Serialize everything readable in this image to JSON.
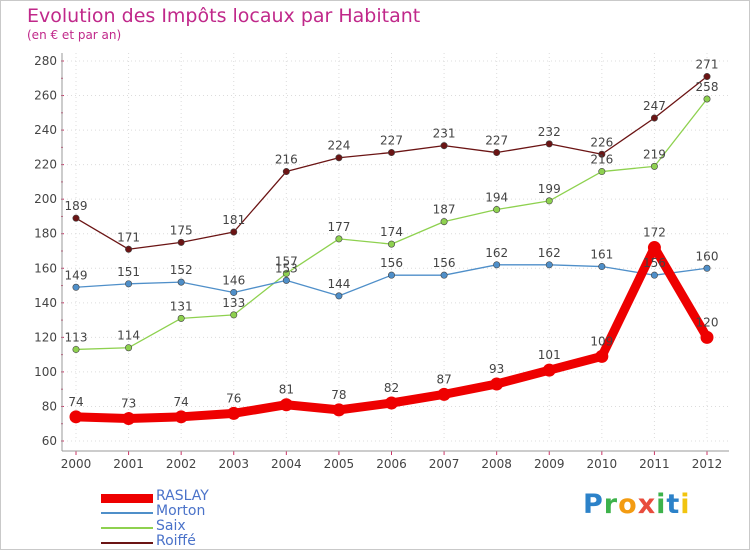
{
  "chart_data": {
    "type": "line",
    "title": "Evolution des Impôts locaux par Habitant",
    "subtitle": "(en € et par an)",
    "xlabel": "",
    "ylabel": "",
    "ylim": [
      60,
      280
    ],
    "yticks": [
      60,
      80,
      100,
      120,
      140,
      160,
      180,
      200,
      220,
      240,
      260,
      280
    ],
    "grid": true,
    "categories": [
      "2000",
      "2001",
      "2002",
      "2003",
      "2004",
      "2005",
      "2006",
      "2007",
      "2008",
      "2009",
      "2010",
      "2011",
      "2012"
    ],
    "series": [
      {
        "name": "RASLAY",
        "color": "#ee0000",
        "values": [
          74,
          73,
          74,
          76,
          81,
          78,
          82,
          87,
          93,
          101,
          109,
          172,
          120
        ]
      },
      {
        "name": "Morton",
        "color": "#4f8fc9",
        "values": [
          149,
          151,
          152,
          146,
          153,
          144,
          156,
          156,
          162,
          162,
          161,
          156,
          160
        ]
      },
      {
        "name": "Saix",
        "color": "#8ed14f",
        "values": [
          113,
          114,
          131,
          133,
          157,
          177,
          174,
          187,
          194,
          199,
          216,
          219,
          258
        ]
      },
      {
        "name": "Roiffé",
        "color": "#6b1414",
        "values": [
          189,
          171,
          175,
          181,
          216,
          224,
          227,
          231,
          227,
          232,
          226,
          247,
          271
        ]
      }
    ],
    "legend_position": "bottom-left"
  },
  "logo": {
    "text": "Proxiti"
  }
}
